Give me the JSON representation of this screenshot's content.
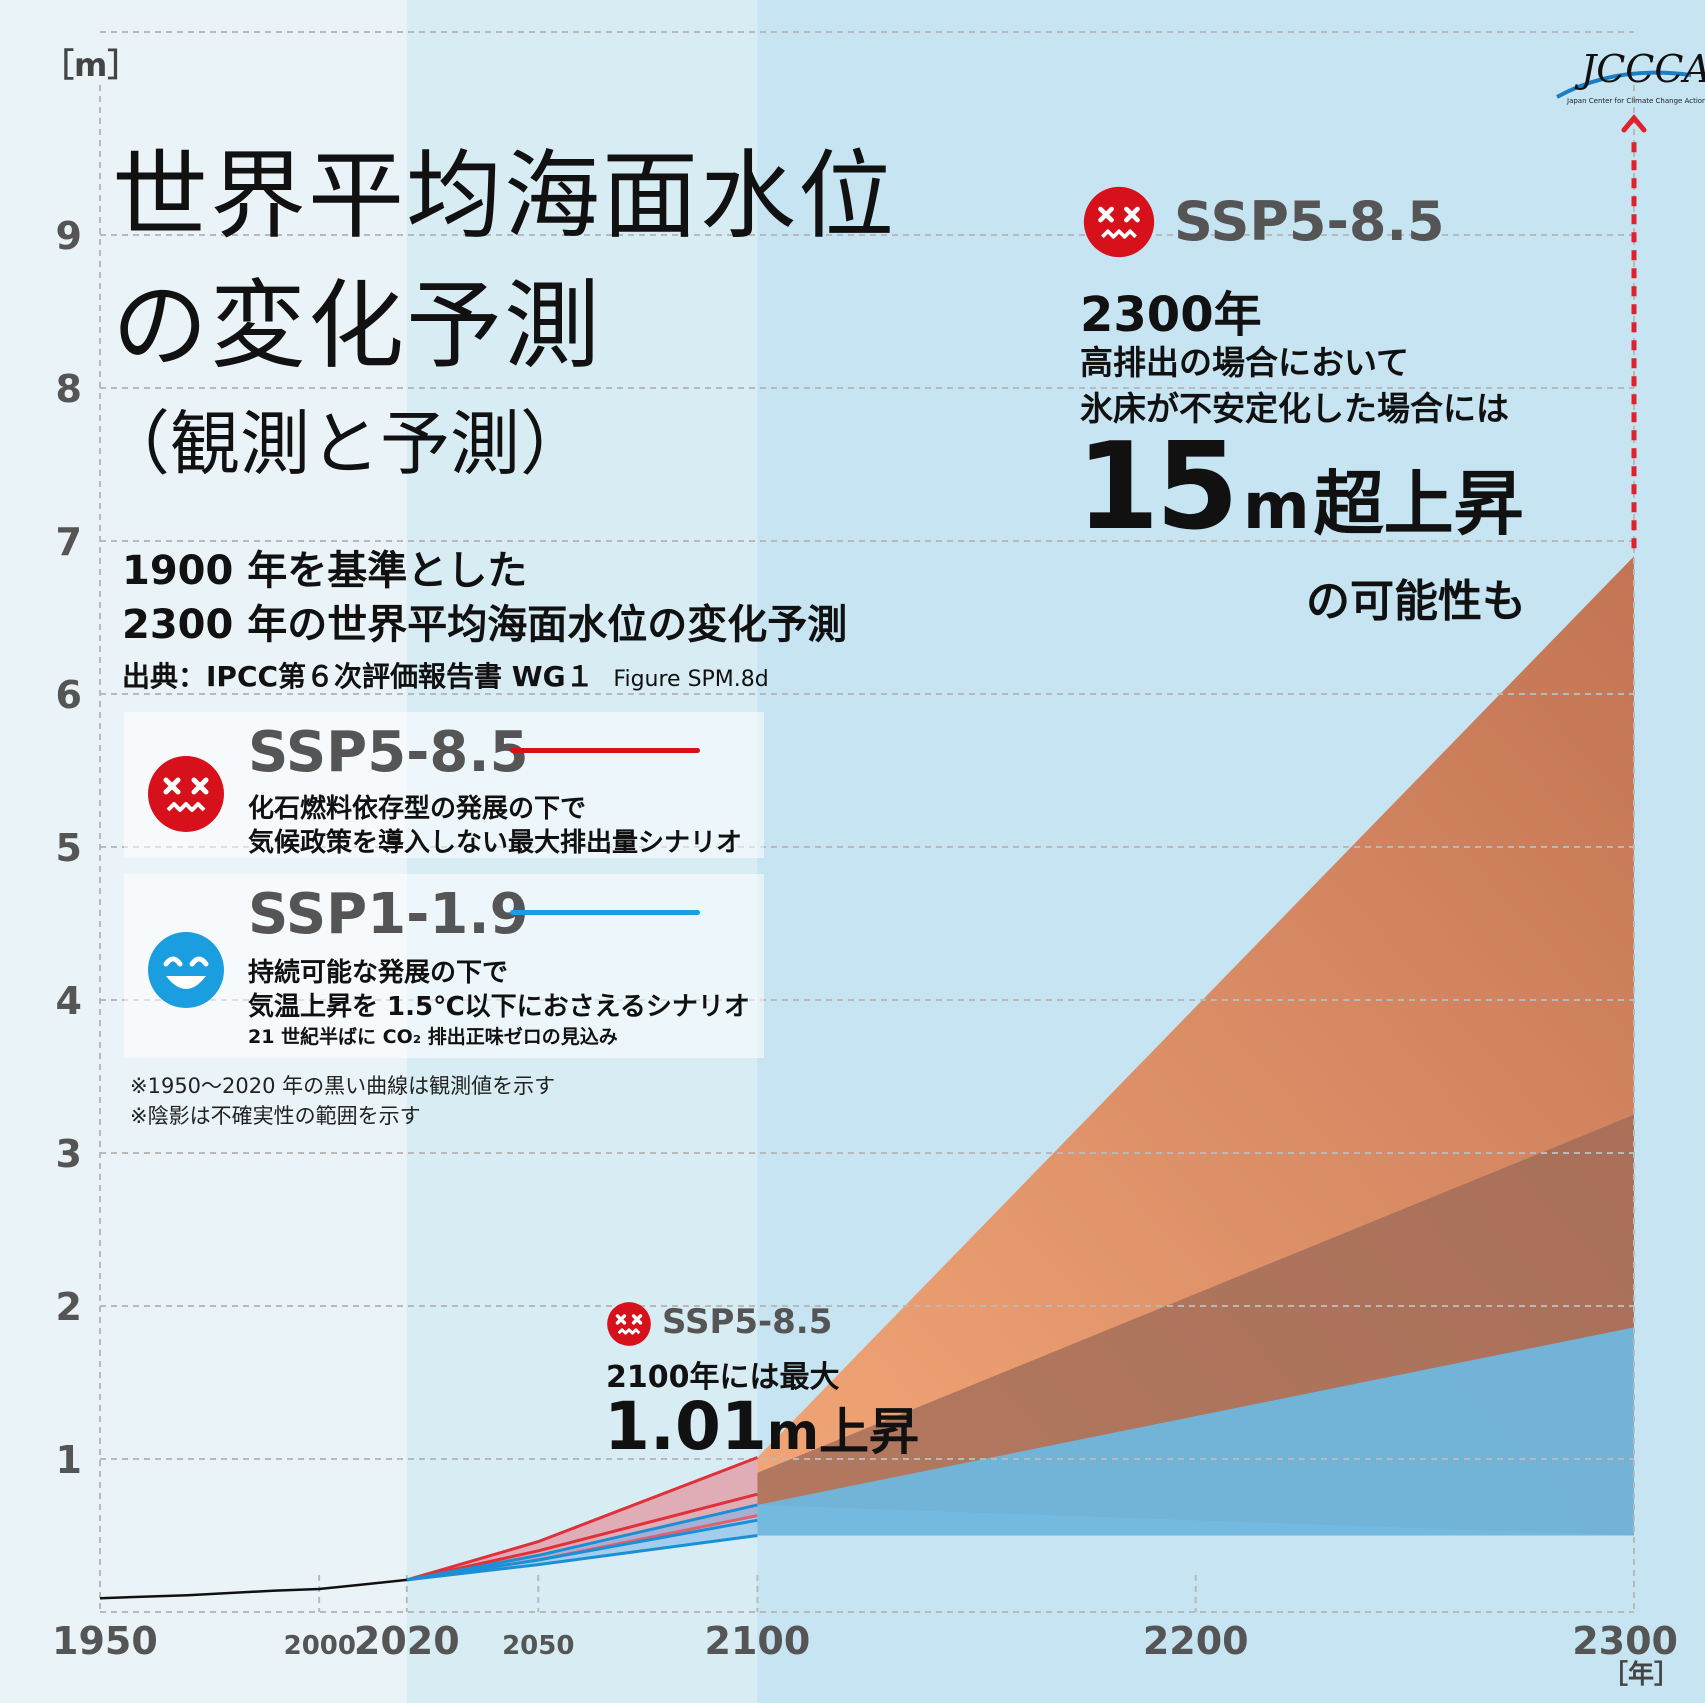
{
  "header": {
    "y_unit": "［m］",
    "logo_text": "JCCCA",
    "logo_subtext": "Japan Center for Climate Change Actions",
    "title_line1": "世界平均海面水位",
    "title_line2": "の変化予測",
    "title_line3": "（観測と予測）",
    "subtitle_line1": "1900 年を基準とした",
    "subtitle_line2": "2300 年の世界平均海面水位の変化予測",
    "source_main": "出典：IPCC第６次評価報告書 WG１",
    "source_fig": "Figure SPM.8d"
  },
  "legend": {
    "ssp585": {
      "name": "SSP5-8.5",
      "desc_line1": "化石燃料依存型の発展の下で",
      "desc_line2": "気候政策を導入しない最大排出量シナリオ",
      "color": "#d7111b"
    },
    "ssp119": {
      "name": "SSP1-1.9",
      "desc_line1": "持続可能な発展の下で",
      "desc_line2": "気温上昇を 1.5℃以下におさえるシナリオ",
      "desc_line3": "21 世紀半ばに CO₂ 排出正味ゼロの見込み",
      "color": "#1b9ee0"
    },
    "note1": "※1950～2020 年の黒い曲線は観測値を示す",
    "note2": "※陰影は不確実性の範囲を示す"
  },
  "callout_2100": {
    "scenario": "SSP5-8.5",
    "line1": "2100年には最大",
    "value": "1.01",
    "unit_text": "m上昇"
  },
  "callout_2300": {
    "scenario": "SSP5-8.5",
    "line1": "2300年",
    "line2": "高排出の場合において",
    "line3": "氷床が不安定化した場合には",
    "value": "15",
    "unit": "m",
    "suffix": "超上昇",
    "line5": "の可能性も"
  },
  "x_axis_unit": "［年］",
  "chart_data": {
    "type": "area",
    "x_range": [
      1950,
      2300
    ],
    "y_range": [
      0,
      10
    ],
    "y_ticks": [
      1,
      2,
      3,
      4,
      5,
      6,
      7,
      8,
      9
    ],
    "x_ticks_major": [
      1950,
      2020,
      2100,
      2200,
      2300
    ],
    "x_ticks_minor": [
      2000,
      2050
    ],
    "grid": true,
    "observed": {
      "x": [
        1950,
        1970,
        1990,
        2000,
        2010,
        2020
      ],
      "y": [
        0.09,
        0.11,
        0.14,
        0.15,
        0.18,
        0.21
      ]
    },
    "series": [
      {
        "name": "SSP5-8.5",
        "x": [
          2020,
          2050,
          2100
        ],
        "median": [
          0.21,
          0.4,
          0.77
        ],
        "low": [
          0.21,
          0.34,
          0.63
        ],
        "high": [
          0.21,
          0.46,
          1.01
        ],
        "range_2100_2300": {
          "x": [
            2100,
            2300
          ],
          "outer_high": [
            1.01,
            6.9
          ],
          "likely_high": [
            0.91,
            3.25
          ],
          "low": [
            0.7,
            0.5
          ]
        }
      },
      {
        "name": "SSP1-1.9",
        "x": [
          2020,
          2050,
          2100
        ],
        "median": [
          0.21,
          0.34,
          0.6
        ],
        "low": [
          0.21,
          0.31,
          0.5
        ],
        "high": [
          0.21,
          0.37,
          0.7
        ],
        "range_2100_2300": {
          "x": [
            2100,
            2300
          ],
          "high": [
            0.7,
            1.86
          ],
          "low": [
            0.5,
            0.5
          ]
        }
      }
    ]
  }
}
